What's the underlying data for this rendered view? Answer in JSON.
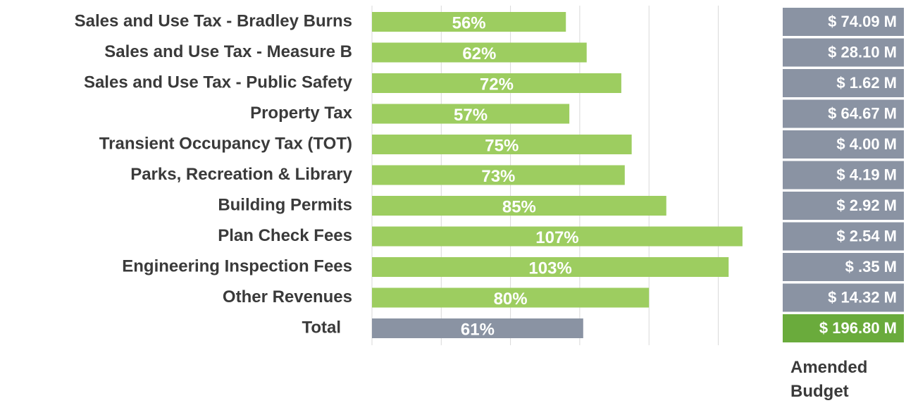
{
  "chart_data": {
    "type": "bar",
    "categories": [
      "Sales and Use Tax - Bradley Burns",
      "Sales and Use Tax - Measure B",
      "Sales and Use Tax - Public Safety",
      "Property Tax",
      "Transient Occupancy Tax (TOT)",
      "Parks, Recreation & Library",
      "Building Permits",
      "Plan Check Fees",
      "Engineering Inspection Fees",
      "Other Revenues",
      "Total"
    ],
    "values": [
      56,
      62,
      72,
      57,
      75,
      73,
      85,
      107,
      103,
      80,
      61
    ],
    "value_labels": [
      "56%",
      "62%",
      "72%",
      "57%",
      "75%",
      "73%",
      "85%",
      "107%",
      "103%",
      "80%",
      "61%"
    ],
    "colors": [
      "#9dcd60",
      "#9dcd60",
      "#9dcd60",
      "#9dcd60",
      "#9dcd60",
      "#9dcd60",
      "#9dcd60",
      "#9dcd60",
      "#9dcd60",
      "#9dcd60",
      "#8a93a3"
    ],
    "xlim": [
      0,
      120
    ],
    "xticks": [
      0,
      20,
      40,
      60,
      80,
      100
    ],
    "grid": true,
    "budget": {
      "label": "Amended Budget",
      "cells": [
        "$ 74.09 M",
        "$ 28.10 M",
        "$ 1.62 M",
        "$ 64.67 M",
        "$ 4.00 M",
        "$ 4.19 M",
        "$ 2.92 M",
        "$ 2.54 M",
        "$ .35 M",
        "$ 14.32 M",
        "$ 196.80 M"
      ],
      "colors": [
        "#8a93a3",
        "#8a93a3",
        "#8a93a3",
        "#8a93a3",
        "#8a93a3",
        "#8a93a3",
        "#8a93a3",
        "#8a93a3",
        "#8a93a3",
        "#8a93a3",
        "#6aab3c"
      ]
    }
  }
}
